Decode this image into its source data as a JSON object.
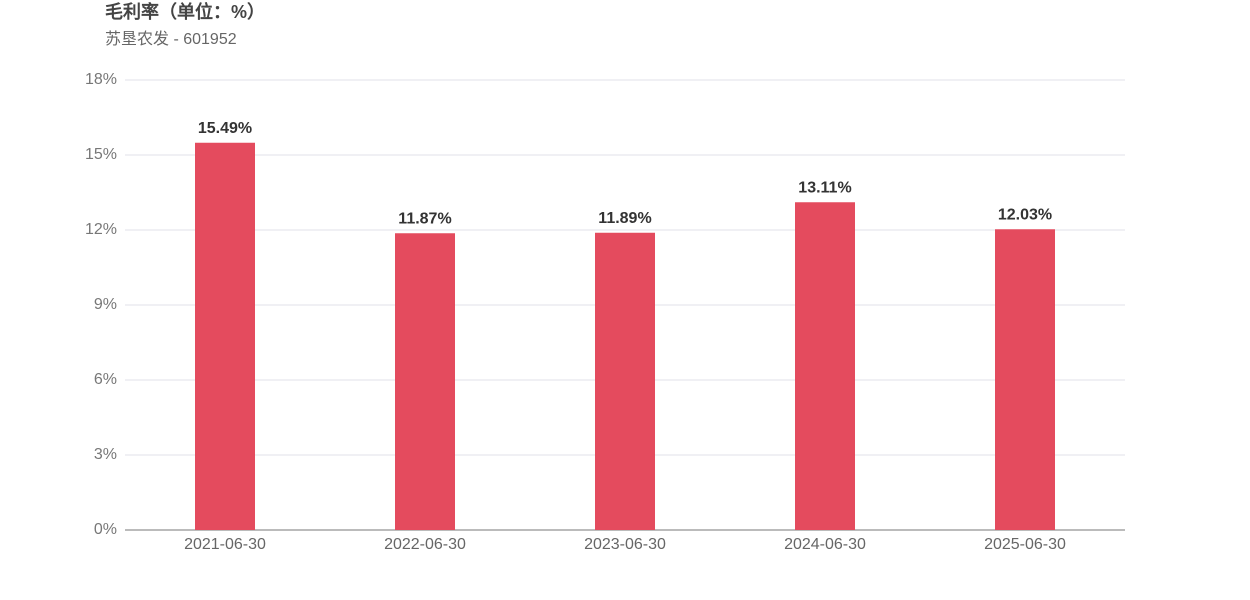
{
  "chart_data": {
    "type": "bar",
    "title": "毛利率（单位：%）",
    "subtitle": "苏垦农发 - 601952",
    "categories": [
      "2021-06-30",
      "2022-06-30",
      "2023-06-30",
      "2024-06-30",
      "2025-06-30"
    ],
    "values": [
      15.49,
      11.87,
      11.89,
      13.11,
      12.03
    ],
    "value_labels": [
      "15.49%",
      "11.87%",
      "11.89%",
      "13.11%",
      "12.03%"
    ],
    "color": "#e44b5e",
    "ylim": [
      0,
      18
    ],
    "yticks": [
      {
        "value": 0,
        "label": "0%"
      },
      {
        "value": 3,
        "label": "3%"
      },
      {
        "value": 6,
        "label": "6%"
      },
      {
        "value": 9,
        "label": "9%"
      },
      {
        "value": 12,
        "label": "12%"
      },
      {
        "value": 15,
        "label": "15%"
      },
      {
        "value": 18,
        "label": "18%"
      }
    ],
    "grid": true
  }
}
